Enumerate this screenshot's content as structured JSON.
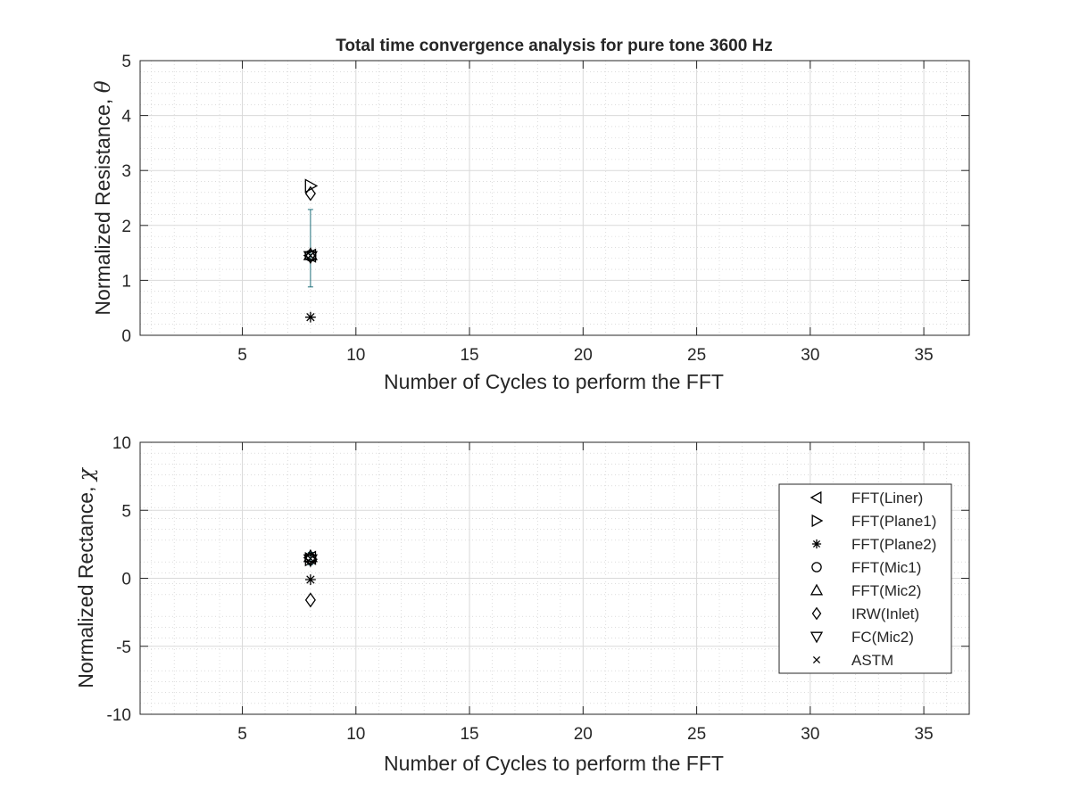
{
  "figure": {
    "title": "Total time convergence analysis for pure tone 3600 Hz"
  },
  "chart_data": [
    {
      "type": "scatter",
      "title": "Total time convergence analysis for pure tone 3600 Hz",
      "xlabel": "Number of Cycles to perform the FFT",
      "ylabel": "Normalized Resistance, θ",
      "ylabel_text": "Normalized Resistance, ",
      "ylabel_symbol": "θ",
      "xlim": [
        0.5,
        37
      ],
      "ylim": [
        0,
        5
      ],
      "xticks": [
        5,
        10,
        15,
        20,
        25,
        30,
        35
      ],
      "yticks": [
        0,
        1,
        2,
        3,
        4,
        5
      ],
      "grid": true,
      "minor_grid": true,
      "legend": null,
      "series": [
        {
          "name": "FFT(Liner)",
          "marker": "triangle-left",
          "x": [
            8
          ],
          "y": [
            1.45
          ]
        },
        {
          "name": "FFT(Plane1)",
          "marker": "triangle-right",
          "x": [
            8
          ],
          "y": [
            2.72
          ]
        },
        {
          "name": "FFT(Plane2)",
          "marker": "asterisk",
          "x": [
            8
          ],
          "y": [
            0.33
          ]
        },
        {
          "name": "FFT(Mic1)",
          "marker": "circle",
          "x": [
            8
          ],
          "y": [
            1.45
          ]
        },
        {
          "name": "FFT(Mic2)",
          "marker": "triangle-up",
          "x": [
            8
          ],
          "y": [
            1.47
          ]
        },
        {
          "name": "IRW(Inlet)",
          "marker": "diamond",
          "x": [
            8
          ],
          "y": [
            2.58
          ]
        },
        {
          "name": "FC(Mic2)",
          "marker": "triangle-down",
          "x": [
            8
          ],
          "y": [
            1.43
          ]
        },
        {
          "name": "ASTM",
          "marker": "x",
          "x": [
            8
          ],
          "y": [
            1.45
          ]
        }
      ],
      "errorbar": {
        "x": 8,
        "y": 1.58,
        "low": 0.88,
        "high": 2.29,
        "color": "#1f6f7a"
      }
    },
    {
      "type": "scatter",
      "title": "",
      "xlabel": "Number of Cycles to perform the FFT",
      "ylabel": "Normalized Rectance, χ",
      "ylabel_text": "Normalized Rectance, ",
      "ylabel_symbol": "χ",
      "xlim": [
        0.5,
        37
      ],
      "ylim": [
        -10,
        10
      ],
      "xticks": [
        5,
        10,
        15,
        20,
        25,
        30,
        35
      ],
      "yticks": [
        -10,
        -5,
        0,
        5,
        10
      ],
      "grid": true,
      "minor_grid": true,
      "legend": "right",
      "series": [
        {
          "name": "FFT(Liner)",
          "marker": "triangle-left",
          "x": [
            8
          ],
          "y": [
            1.5
          ]
        },
        {
          "name": "FFT(Plane1)",
          "marker": "triangle-right",
          "x": [
            8
          ],
          "y": [
            1.4
          ]
        },
        {
          "name": "FFT(Plane2)",
          "marker": "asterisk",
          "x": [
            8
          ],
          "y": [
            -0.1
          ]
        },
        {
          "name": "FFT(Mic1)",
          "marker": "circle",
          "x": [
            8
          ],
          "y": [
            1.45
          ]
        },
        {
          "name": "FFT(Mic2)",
          "marker": "triangle-up",
          "x": [
            8
          ],
          "y": [
            1.6
          ]
        },
        {
          "name": "IRW(Inlet)",
          "marker": "diamond",
          "x": [
            8
          ],
          "y": [
            -1.6
          ]
        },
        {
          "name": "FC(Mic2)",
          "marker": "triangle-down",
          "x": [
            8
          ],
          "y": [
            1.35
          ]
        },
        {
          "name": "ASTM",
          "marker": "x",
          "x": [
            8
          ],
          "y": [
            1.45
          ]
        }
      ],
      "errorbar": {
        "x": 8,
        "y": 1.4,
        "low": 1.0,
        "high": 1.9,
        "color": "#1f6f7a"
      }
    }
  ]
}
